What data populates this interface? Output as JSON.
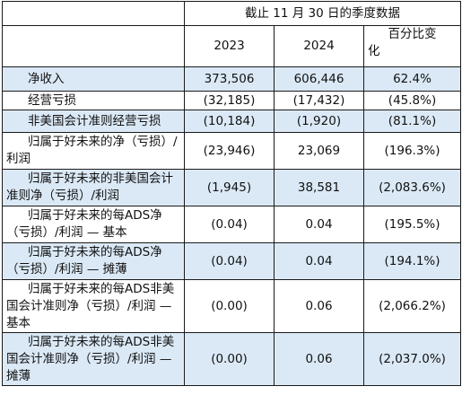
{
  "table": {
    "period_header": "截止 11 月 30 日的季度数据",
    "col_2023": "2023",
    "col_2024": "2024",
    "col_pct_line1": "百分比变",
    "col_pct_line2": "化",
    "rows": [
      {
        "label": "净收入",
        "v2023": "373,506",
        "v2024": "606,446",
        "pct": "62.4%"
      },
      {
        "label": "经营亏损",
        "v2023": "(32,185)",
        "v2024": "(17,432)",
        "pct": "(45.8%)"
      },
      {
        "label": "非美国会计准则经营亏损",
        "v2023": "(10,184)",
        "v2024": "(1,920)",
        "pct": "(81.1%)"
      },
      {
        "label": "归属于好未来的净（亏损）/利润",
        "v2023": "(23,946)",
        "v2024": "23,069",
        "pct": "(196.3%)"
      },
      {
        "label": "归属于好未来的非美国会计准则净（亏损）/利润",
        "v2023": "(1,945)",
        "v2024": "38,581",
        "pct": "(2,083.6%)"
      },
      {
        "label": "归属于好未来的每ADS净（亏损）/利润 — 基本",
        "v2023": "(0.04)",
        "v2024": "0.04",
        "pct": "(195.5%)"
      },
      {
        "label": "归属于好未来的每ADS净（亏损）/利润 — 摊薄",
        "v2023": "(0.04)",
        "v2024": "0.04",
        "pct": "(194.1%)"
      },
      {
        "label": "归属于好未来的每ADS非美国会计准则净（亏损）/利润 — 基本",
        "v2023": "(0.00)",
        "v2024": "0.06",
        "pct": "(2,066.2%)"
      },
      {
        "label": "归属于好未来的每ADS非美国会计准则净（亏损）/利润 — 摊薄",
        "v2023": "(0.00)",
        "v2024": "0.06",
        "pct": "(2,037.0%)"
      }
    ]
  },
  "colors": {
    "row_shade": "#dbe9f6",
    "border": "#1a1a1a"
  }
}
